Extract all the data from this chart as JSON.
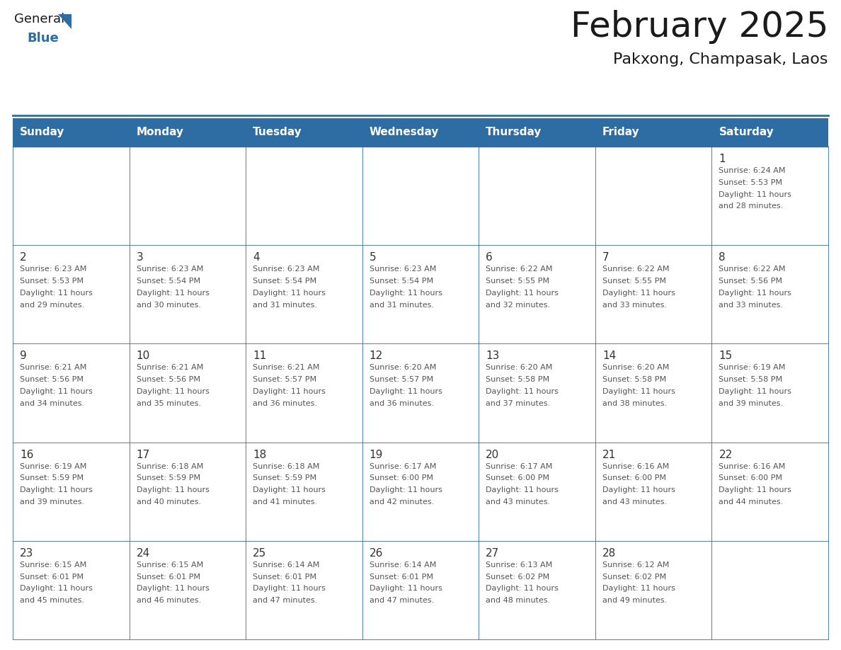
{
  "title": "February 2025",
  "subtitle": "Pakxong, Champasak, Laos",
  "header_bg": "#2E6DA4",
  "header_text": "#FFFFFF",
  "border_color": "#2E6DA4",
  "cell_bg": "#FFFFFF",
  "text_color_day": "#333333",
  "text_color_info": "#555555",
  "day_names": [
    "Sunday",
    "Monday",
    "Tuesday",
    "Wednesday",
    "Thursday",
    "Friday",
    "Saturday"
  ],
  "days": [
    {
      "day": 1,
      "col": 6,
      "row": 0,
      "sunrise": "6:24 AM",
      "sunset": "5:53 PM",
      "daylight": "11 hours and 28 minutes."
    },
    {
      "day": 2,
      "col": 0,
      "row": 1,
      "sunrise": "6:23 AM",
      "sunset": "5:53 PM",
      "daylight": "11 hours and 29 minutes."
    },
    {
      "day": 3,
      "col": 1,
      "row": 1,
      "sunrise": "6:23 AM",
      "sunset": "5:54 PM",
      "daylight": "11 hours and 30 minutes."
    },
    {
      "day": 4,
      "col": 2,
      "row": 1,
      "sunrise": "6:23 AM",
      "sunset": "5:54 PM",
      "daylight": "11 hours and 31 minutes."
    },
    {
      "day": 5,
      "col": 3,
      "row": 1,
      "sunrise": "6:23 AM",
      "sunset": "5:54 PM",
      "daylight": "11 hours and 31 minutes."
    },
    {
      "day": 6,
      "col": 4,
      "row": 1,
      "sunrise": "6:22 AM",
      "sunset": "5:55 PM",
      "daylight": "11 hours and 32 minutes."
    },
    {
      "day": 7,
      "col": 5,
      "row": 1,
      "sunrise": "6:22 AM",
      "sunset": "5:55 PM",
      "daylight": "11 hours and 33 minutes."
    },
    {
      "day": 8,
      "col": 6,
      "row": 1,
      "sunrise": "6:22 AM",
      "sunset": "5:56 PM",
      "daylight": "11 hours and 33 minutes."
    },
    {
      "day": 9,
      "col": 0,
      "row": 2,
      "sunrise": "6:21 AM",
      "sunset": "5:56 PM",
      "daylight": "11 hours and 34 minutes."
    },
    {
      "day": 10,
      "col": 1,
      "row": 2,
      "sunrise": "6:21 AM",
      "sunset": "5:56 PM",
      "daylight": "11 hours and 35 minutes."
    },
    {
      "day": 11,
      "col": 2,
      "row": 2,
      "sunrise": "6:21 AM",
      "sunset": "5:57 PM",
      "daylight": "11 hours and 36 minutes."
    },
    {
      "day": 12,
      "col": 3,
      "row": 2,
      "sunrise": "6:20 AM",
      "sunset": "5:57 PM",
      "daylight": "11 hours and 36 minutes."
    },
    {
      "day": 13,
      "col": 4,
      "row": 2,
      "sunrise": "6:20 AM",
      "sunset": "5:58 PM",
      "daylight": "11 hours and 37 minutes."
    },
    {
      "day": 14,
      "col": 5,
      "row": 2,
      "sunrise": "6:20 AM",
      "sunset": "5:58 PM",
      "daylight": "11 hours and 38 minutes."
    },
    {
      "day": 15,
      "col": 6,
      "row": 2,
      "sunrise": "6:19 AM",
      "sunset": "5:58 PM",
      "daylight": "11 hours and 39 minutes."
    },
    {
      "day": 16,
      "col": 0,
      "row": 3,
      "sunrise": "6:19 AM",
      "sunset": "5:59 PM",
      "daylight": "11 hours and 39 minutes."
    },
    {
      "day": 17,
      "col": 1,
      "row": 3,
      "sunrise": "6:18 AM",
      "sunset": "5:59 PM",
      "daylight": "11 hours and 40 minutes."
    },
    {
      "day": 18,
      "col": 2,
      "row": 3,
      "sunrise": "6:18 AM",
      "sunset": "5:59 PM",
      "daylight": "11 hours and 41 minutes."
    },
    {
      "day": 19,
      "col": 3,
      "row": 3,
      "sunrise": "6:17 AM",
      "sunset": "6:00 PM",
      "daylight": "11 hours and 42 minutes."
    },
    {
      "day": 20,
      "col": 4,
      "row": 3,
      "sunrise": "6:17 AM",
      "sunset": "6:00 PM",
      "daylight": "11 hours and 43 minutes."
    },
    {
      "day": 21,
      "col": 5,
      "row": 3,
      "sunrise": "6:16 AM",
      "sunset": "6:00 PM",
      "daylight": "11 hours and 43 minutes."
    },
    {
      "day": 22,
      "col": 6,
      "row": 3,
      "sunrise": "6:16 AM",
      "sunset": "6:00 PM",
      "daylight": "11 hours and 44 minutes."
    },
    {
      "day": 23,
      "col": 0,
      "row": 4,
      "sunrise": "6:15 AM",
      "sunset": "6:01 PM",
      "daylight": "11 hours and 45 minutes."
    },
    {
      "day": 24,
      "col": 1,
      "row": 4,
      "sunrise": "6:15 AM",
      "sunset": "6:01 PM",
      "daylight": "11 hours and 46 minutes."
    },
    {
      "day": 25,
      "col": 2,
      "row": 4,
      "sunrise": "6:14 AM",
      "sunset": "6:01 PM",
      "daylight": "11 hours and 47 minutes."
    },
    {
      "day": 26,
      "col": 3,
      "row": 4,
      "sunrise": "6:14 AM",
      "sunset": "6:01 PM",
      "daylight": "11 hours and 47 minutes."
    },
    {
      "day": 27,
      "col": 4,
      "row": 4,
      "sunrise": "6:13 AM",
      "sunset": "6:02 PM",
      "daylight": "11 hours and 48 minutes."
    },
    {
      "day": 28,
      "col": 5,
      "row": 4,
      "sunrise": "6:12 AM",
      "sunset": "6:02 PM",
      "daylight": "11 hours and 49 minutes."
    }
  ],
  "num_rows": 5,
  "num_cols": 7,
  "logo_general_color": "#1a1a1a",
  "logo_blue_color": "#2E6DA4",
  "title_fontsize": 36,
  "subtitle_fontsize": 16,
  "header_fontsize": 11,
  "day_num_fontsize": 11,
  "info_fontsize": 8
}
